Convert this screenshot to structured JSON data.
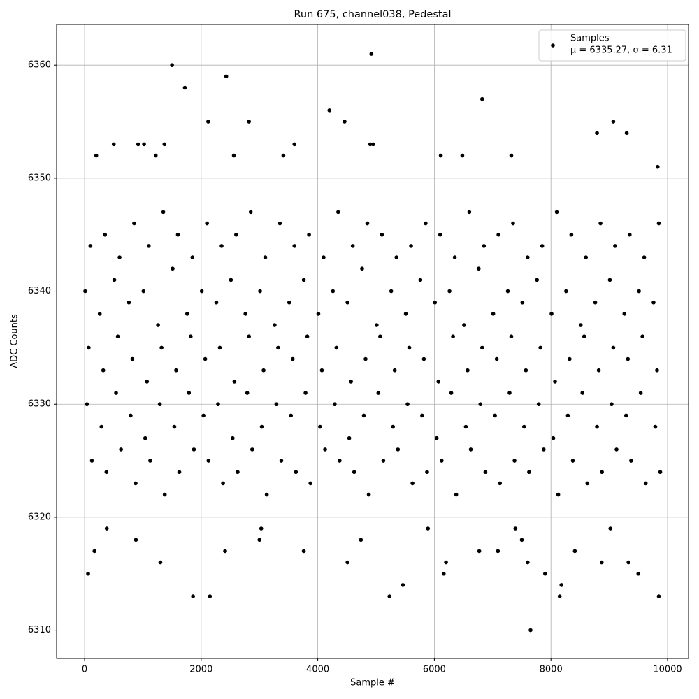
{
  "chart_data": {
    "type": "scatter",
    "title": "Run 675, channel038, Pedestal",
    "x_label": "Sample #",
    "y_label": "ADC Counts",
    "xlim": [
      -480,
      10360
    ],
    "ylim": [
      6307.5,
      6363.6
    ],
    "xticks": [
      0,
      2000,
      4000,
      6000,
      8000,
      10000
    ],
    "yticks": [
      6310,
      6320,
      6330,
      6340,
      6350,
      6360
    ],
    "grid": true,
    "legend": "upper right",
    "legend_stats": "μ = 6335.27, σ = 6.31",
    "series": [
      {
        "name": "Samples",
        "color": "#000000",
        "x": [
          10,
          260,
          510,
          760,
          1010,
          1260,
          1510,
          1760,
          2010,
          2260,
          2510,
          2760,
          3010,
          3260,
          3510,
          3760,
          4010,
          4260,
          4510,
          4760,
          5010,
          5260,
          5510,
          5760,
          6010,
          6260,
          6510,
          6760,
          7010,
          7260,
          7510,
          7760,
          8010,
          8260,
          8510,
          8760,
          9010,
          9260,
          9510,
          9760,
          70,
          320,
          570,
          820,
          1070,
          1320,
          1570,
          1820,
          2070,
          2320,
          2570,
          2820,
          3070,
          3320,
          3570,
          3820,
          4070,
          4320,
          4570,
          4820,
          5070,
          5320,
          5570,
          5820,
          6070,
          6320,
          6570,
          6820,
          7070,
          7320,
          7570,
          7820,
          8070,
          8320,
          8570,
          8820,
          9070,
          9320,
          9570,
          9820,
          40,
          290,
          540,
          790,
          1040,
          1290,
          1540,
          1790,
          2040,
          2290,
          2540,
          2790,
          3040,
          3290,
          3540,
          3790,
          4040,
          4290,
          4540,
          4790,
          5040,
          5290,
          5540,
          5790,
          6040,
          6290,
          6540,
          6790,
          7040,
          7290,
          7540,
          7790,
          8040,
          8290,
          8540,
          8790,
          9040,
          9290,
          9540,
          9790,
          100,
          350,
          600,
          850,
          1100,
          1350,
          1600,
          1850,
          2100,
          2350,
          2600,
          2850,
          3100,
          3350,
          3600,
          3850,
          4100,
          4350,
          4600,
          4850,
          5100,
          5350,
          5600,
          5850,
          6100,
          6350,
          6600,
          6850,
          7100,
          7350,
          7600,
          7850,
          8100,
          8350,
          8600,
          8850,
          9100,
          9350,
          9600,
          9850,
          125,
          375,
          625,
          875,
          1125,
          1375,
          1625,
          1875,
          2125,
          2375,
          2625,
          2875,
          3125,
          3375,
          3625,
          3875,
          4125,
          4375,
          4625,
          4875,
          5125,
          5375,
          5625,
          5875,
          6125,
          6375,
          6625,
          6875,
          7125,
          7375,
          7625,
          7875,
          8125,
          8375,
          8625,
          8875,
          9125,
          9375,
          9625,
          9875,
          1500,
          1720,
          2430,
          4920,
          6820,
          7650,
          1860,
          2150,
          5230,
          8150,
          9850,
          60,
          6160,
          7900,
          9500,
          5460,
          8180,
          4200,
          9070,
          2120,
          4460,
          2820,
          1300,
          4510,
          6200,
          7600,
          8870,
          9330,
          170,
          2410,
          3760,
          6770,
          7090,
          8410,
          880,
          3000,
          4740,
          7500,
          380,
          1370,
          3030,
          4900,
          5890,
          7390,
          9020,
          500,
          920,
          1220,
          2560,
          3600,
          6110,
          6480,
          8790,
          9300,
          9830,
          200,
          1020,
          3410,
          4950,
          7320
        ],
        "values": [
          6340,
          6338,
          6341,
          6339,
          6340,
          6337,
          6342,
          6338,
          6340,
          6339,
          6341,
          6338,
          6340,
          6337,
          6339,
          6341,
          6338,
          6340,
          6339,
          6342,
          6337,
          6340,
          6338,
          6341,
          6339,
          6340,
          6337,
          6342,
          6338,
          6340,
          6339,
          6341,
          6338,
          6340,
          6337,
          6339,
          6341,
          6338,
          6340,
          6339,
          6335,
          6333,
          6336,
          6334,
          6332,
          6335,
          6333,
          6336,
          6334,
          6335,
          6332,
          6336,
          6333,
          6335,
          6334,
          6336,
          6333,
          6335,
          6332,
          6334,
          6336,
          6333,
          6335,
          6334,
          6332,
          6336,
          6333,
          6335,
          6334,
          6336,
          6333,
          6335,
          6332,
          6334,
          6336,
          6333,
          6335,
          6334,
          6336,
          6333,
          6330,
          6328,
          6331,
          6329,
          6327,
          6330,
          6328,
          6331,
          6329,
          6330,
          6327,
          6331,
          6328,
          6330,
          6329,
          6331,
          6328,
          6330,
          6327,
          6329,
          6331,
          6328,
          6330,
          6329,
          6327,
          6331,
          6328,
          6330,
          6329,
          6331,
          6328,
          6330,
          6327,
          6329,
          6331,
          6328,
          6330,
          6329,
          6331,
          6328,
          6344,
          6345,
          6343,
          6346,
          6344,
          6347,
          6345,
          6343,
          6346,
          6344,
          6345,
          6347,
          6343,
          6346,
          6344,
          6345,
          6343,
          6347,
          6344,
          6346,
          6345,
          6343,
          6344,
          6346,
          6345,
          6343,
          6347,
          6344,
          6345,
          6346,
          6343,
          6344,
          6347,
          6345,
          6343,
          6346,
          6344,
          6345,
          6343,
          6346,
          6325,
          6324,
          6326,
          6323,
          6325,
          6322,
          6324,
          6326,
          6325,
          6323,
          6324,
          6326,
          6322,
          6325,
          6324,
          6323,
          6326,
          6325,
          6324,
          6322,
          6325,
          6326,
          6323,
          6324,
          6325,
          6322,
          6326,
          6324,
          6323,
          6325,
          6324,
          6326,
          6322,
          6325,
          6323,
          6324,
          6326,
          6325,
          6323,
          6324,
          6360,
          6358,
          6359,
          6361,
          6357,
          6310,
          6313,
          6313,
          6313,
          6313,
          6313,
          6315,
          6315,
          6315,
          6315,
          6314,
          6314,
          6356,
          6355,
          6355,
          6355,
          6355,
          6316,
          6316,
          6316,
          6316,
          6316,
          6316,
          6317,
          6317,
          6317,
          6317,
          6317,
          6317,
          6318,
          6318,
          6318,
          6318,
          6319,
          6353,
          6319,
          6353,
          6319,
          6319,
          6319,
          6353,
          6353,
          6352,
          6352,
          6353,
          6352,
          6352,
          6354,
          6354,
          6351,
          6352,
          6353,
          6352,
          6353,
          6352
        ]
      }
    ]
  }
}
